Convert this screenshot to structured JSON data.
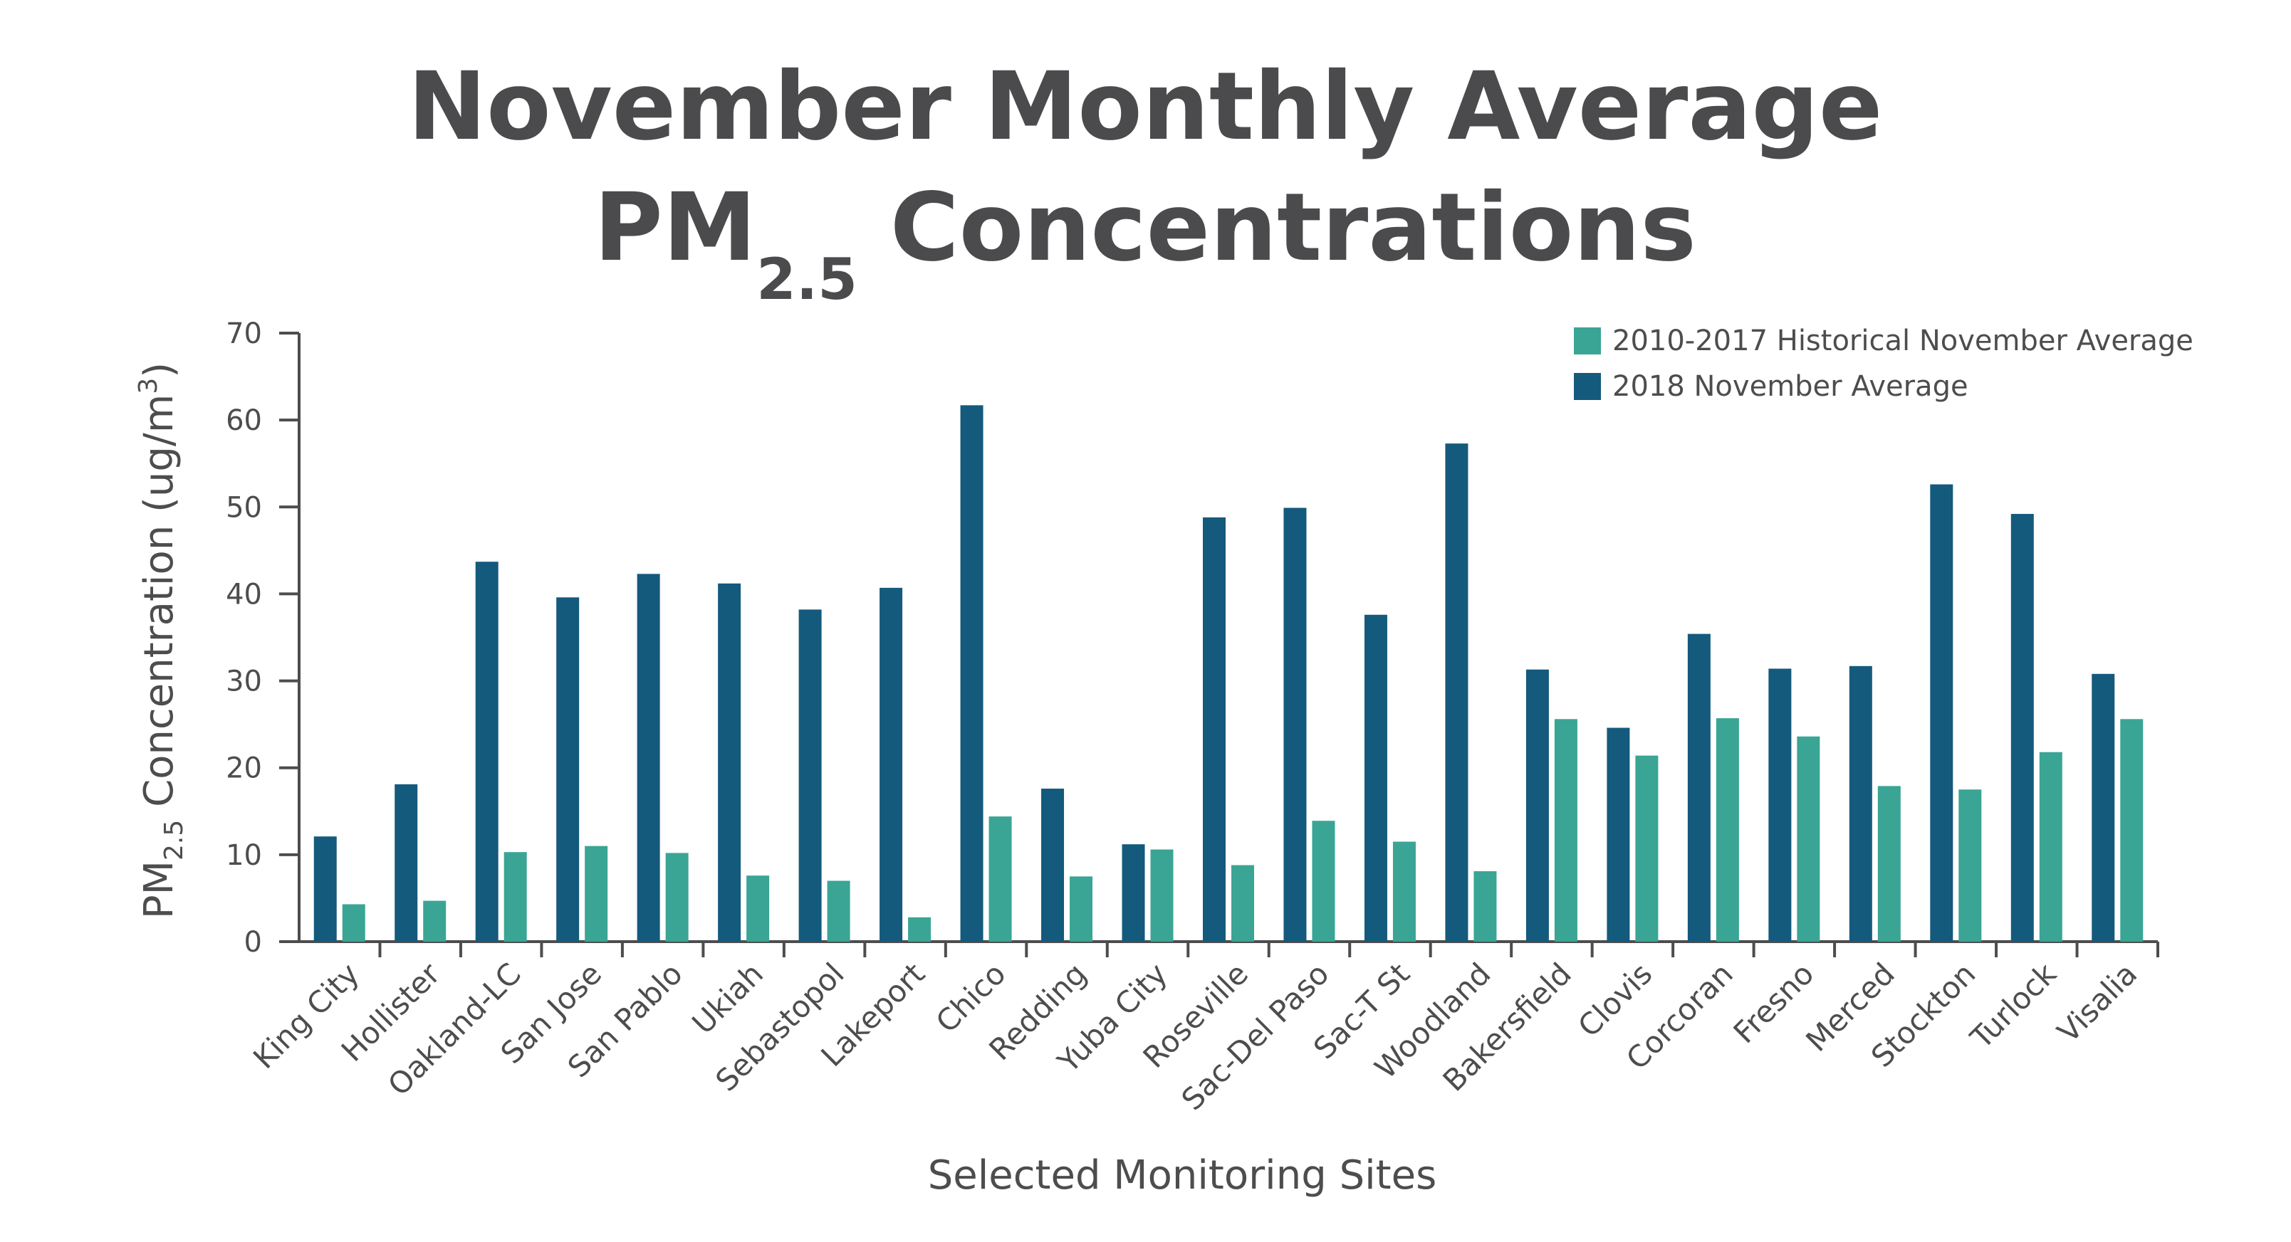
{
  "chart_data": {
    "type": "bar",
    "title_line1": "November Monthly Average",
    "title_line2_main": "PM",
    "title_line2_sub": "2.5",
    "title_line2_rest": " Concentrations",
    "ylabel_main": "PM",
    "ylabel_sub": "2.5",
    "ylabel_rest": " Concentration (ug/m",
    "ylabel_sup": "3",
    "ylabel_close": ")",
    "xlabel": "Selected Monitoring Sites",
    "ylim": [
      0,
      70
    ],
    "yticks": [
      "0",
      "10",
      "20",
      "30",
      "40",
      "50",
      "60",
      "70"
    ],
    "grid": false,
    "legend_position": "top-right",
    "categories": [
      "King City",
      "Hollister",
      "Oakland-LC",
      "San Jose",
      "San Pablo",
      "Ukiah",
      "Sebastopol",
      "Lakeport",
      "Chico",
      "Redding",
      "Yuba City",
      "Roseville",
      "Sac-Del Paso",
      "Sac-T St",
      "Woodland",
      "Bakersfield",
      "Clovis",
      "Corcoran",
      "Fresno",
      "Merced",
      "Stockton",
      "Turlock",
      "Visalia"
    ],
    "series": [
      {
        "name": "2018 November Average",
        "color": "#145a7c",
        "values": [
          12.1,
          18.1,
          43.7,
          39.6,
          42.3,
          41.2,
          38.2,
          40.7,
          61.7,
          17.6,
          11.2,
          48.8,
          49.9,
          37.6,
          57.3,
          31.3,
          24.6,
          35.4,
          31.4,
          31.7,
          52.6,
          49.2,
          30.8
        ]
      },
      {
        "name": "2010-2017 Historical November Average",
        "color": "#3aa594",
        "values": [
          4.3,
          4.7,
          10.3,
          11.0,
          10.2,
          7.6,
          7.0,
          2.8,
          14.4,
          7.5,
          10.6,
          8.8,
          13.9,
          11.5,
          8.1,
          25.6,
          21.4,
          25.7,
          23.6,
          17.9,
          17.5,
          21.8,
          25.6
        ]
      }
    ],
    "legend": [
      {
        "label": "2010-2017 Historical November Average",
        "color": "#3aa594"
      },
      {
        "label": "2018 November Average",
        "color": "#145a7c"
      }
    ],
    "axis_color": "#4d4d4f"
  }
}
